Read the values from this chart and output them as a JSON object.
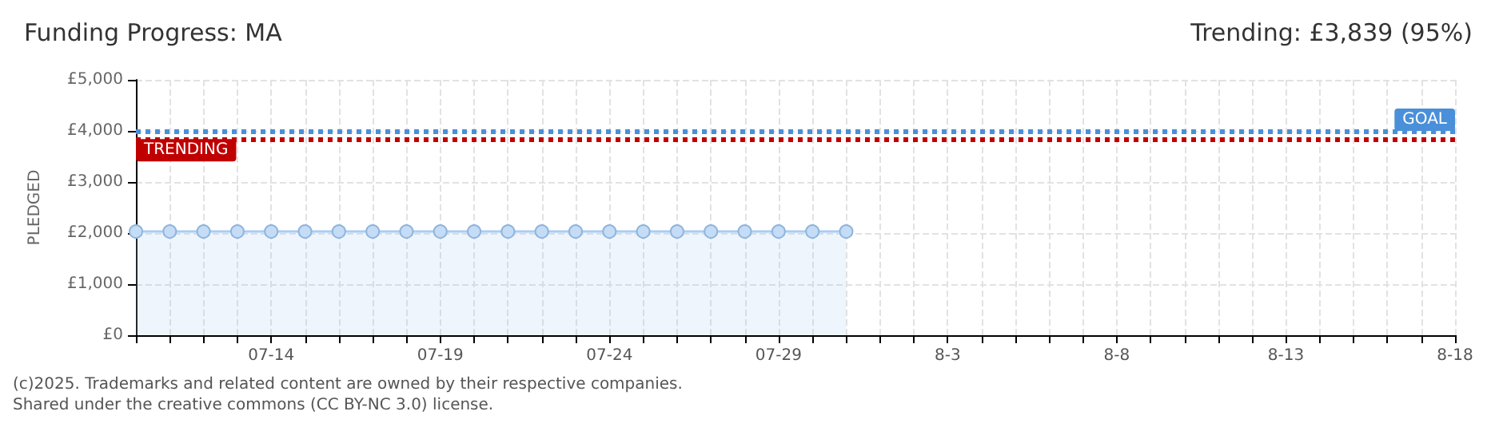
{
  "chart_data": {
    "type": "area",
    "title": "Funding Progress: MA",
    "subtitle": "Trending: £3,839 (95%)",
    "ylabel": "PLEDGED",
    "x": [
      "--07-10",
      "--07-11",
      "--07-12",
      "--07-13",
      "--07-14",
      "--07-15",
      "--07-16",
      "--07-17",
      "--07-18",
      "--07-19",
      "--07-20",
      "--07-21",
      "--07-22",
      "--07-23",
      "--07-24",
      "--07-25",
      "--07-26",
      "--07-27",
      "--07-28",
      "--07-29",
      "--07-30",
      "--07-31"
    ],
    "series": [
      {
        "color": "#a9cdf2",
        "values": [
          2030,
          2030,
          2030,
          2030,
          2030,
          2030,
          2030,
          2030,
          2030,
          2030,
          2030,
          2030,
          2030,
          2030,
          2030,
          2030,
          2030,
          2030,
          2030,
          2030,
          2030,
          2030
        ]
      }
    ],
    "xlim": [
      "--07-10",
      "--08-18"
    ],
    "xticks": [
      {
        "value": "--07-10",
        "label": null
      },
      {
        "value": "--07-11",
        "label": null
      },
      {
        "value": "--07-12",
        "label": null
      },
      {
        "value": "--07-13",
        "label": null
      },
      {
        "value": "--07-14",
        "label": "07-14"
      },
      {
        "value": "--07-15",
        "label": null
      },
      {
        "value": "--07-16",
        "label": null
      },
      {
        "value": "--07-17",
        "label": null
      },
      {
        "value": "--07-18",
        "label": null
      },
      {
        "value": "--07-19",
        "label": "07-19"
      },
      {
        "value": "--07-20",
        "label": null
      },
      {
        "value": "--07-21",
        "label": null
      },
      {
        "value": "--07-22",
        "label": null
      },
      {
        "value": "--07-23",
        "label": null
      },
      {
        "value": "--07-24",
        "label": "07-24"
      },
      {
        "value": "--07-25",
        "label": null
      },
      {
        "value": "--07-26",
        "label": null
      },
      {
        "value": "--07-27",
        "label": null
      },
      {
        "value": "--07-28",
        "label": null
      },
      {
        "value": "--07-29",
        "label": "07-29"
      },
      {
        "value": "--07-30",
        "label": null
      },
      {
        "value": "--07-31",
        "label": null
      },
      {
        "value": "--08-01",
        "label": null
      },
      {
        "value": "--08-02",
        "label": null
      },
      {
        "value": "--08-03",
        "label": "8-3"
      },
      {
        "value": "--08-04",
        "label": null
      },
      {
        "value": "--08-05",
        "label": null
      },
      {
        "value": "--08-06",
        "label": null
      },
      {
        "value": "--08-07",
        "label": null
      },
      {
        "value": "--08-08",
        "label": "8-8"
      },
      {
        "value": "--08-09",
        "label": null
      },
      {
        "value": "--08-10",
        "label": null
      },
      {
        "value": "--08-11",
        "label": null
      },
      {
        "value": "--08-12",
        "label": null
      },
      {
        "value": "--08-13",
        "label": "8-13"
      },
      {
        "value": "--08-14",
        "label": null
      },
      {
        "value": "--08-15",
        "label": null
      },
      {
        "value": "--08-16",
        "label": null
      },
      {
        "value": "--08-17",
        "label": null
      },
      {
        "value": "--08-18",
        "label": "8-18"
      }
    ],
    "ylim": [
      0,
      5000
    ],
    "yticks": [
      {
        "value": 0,
        "label": "£0"
      },
      {
        "value": 1000,
        "label": "£1,000"
      },
      {
        "value": 2000,
        "label": "£2,000"
      },
      {
        "value": 3000,
        "label": "£3,000"
      },
      {
        "value": 4000,
        "label": "£4,000"
      },
      {
        "value": 5000,
        "label": "£5,000"
      }
    ],
    "ref_lines": [
      {
        "axis": "y",
        "value": 4000,
        "label": "GOAL",
        "color": "#4a8fd9",
        "line_style": "dotted"
      },
      {
        "axis": "y",
        "value": 3839,
        "label": "TRENDING",
        "color": "#c00000",
        "line_style": "dotted"
      }
    ],
    "grid": true,
    "marker": "circle",
    "annotations": [
      "(c)2025. Trademarks and related content are owned by their respective companies.",
      "Shared under the creative commons (CC BY-NC 3.0) license."
    ]
  }
}
